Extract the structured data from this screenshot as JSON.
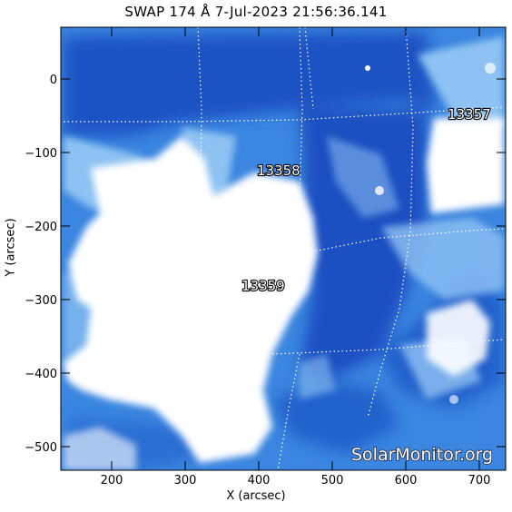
{
  "title": "SWAP 174 Å  7-Jul-2023 21:56:36.141",
  "axes": {
    "xlabel": "X (arcsec)",
    "ylabel": "Y (arcsec)",
    "xticks": [
      "200",
      "300",
      "400",
      "500",
      "600",
      "700"
    ],
    "yticks": [
      "0",
      "−100",
      "−200",
      "−300",
      "−400",
      "−500"
    ]
  },
  "regions": [
    "13357",
    "13358",
    "13359"
  ],
  "watermark": "SolarMonitor.org",
  "colors": {
    "deep_blue": "#1a52c4",
    "mid_blue": "#3a86e0",
    "light_blue": "#8ec2f2",
    "saturated": "#ffffff"
  }
}
